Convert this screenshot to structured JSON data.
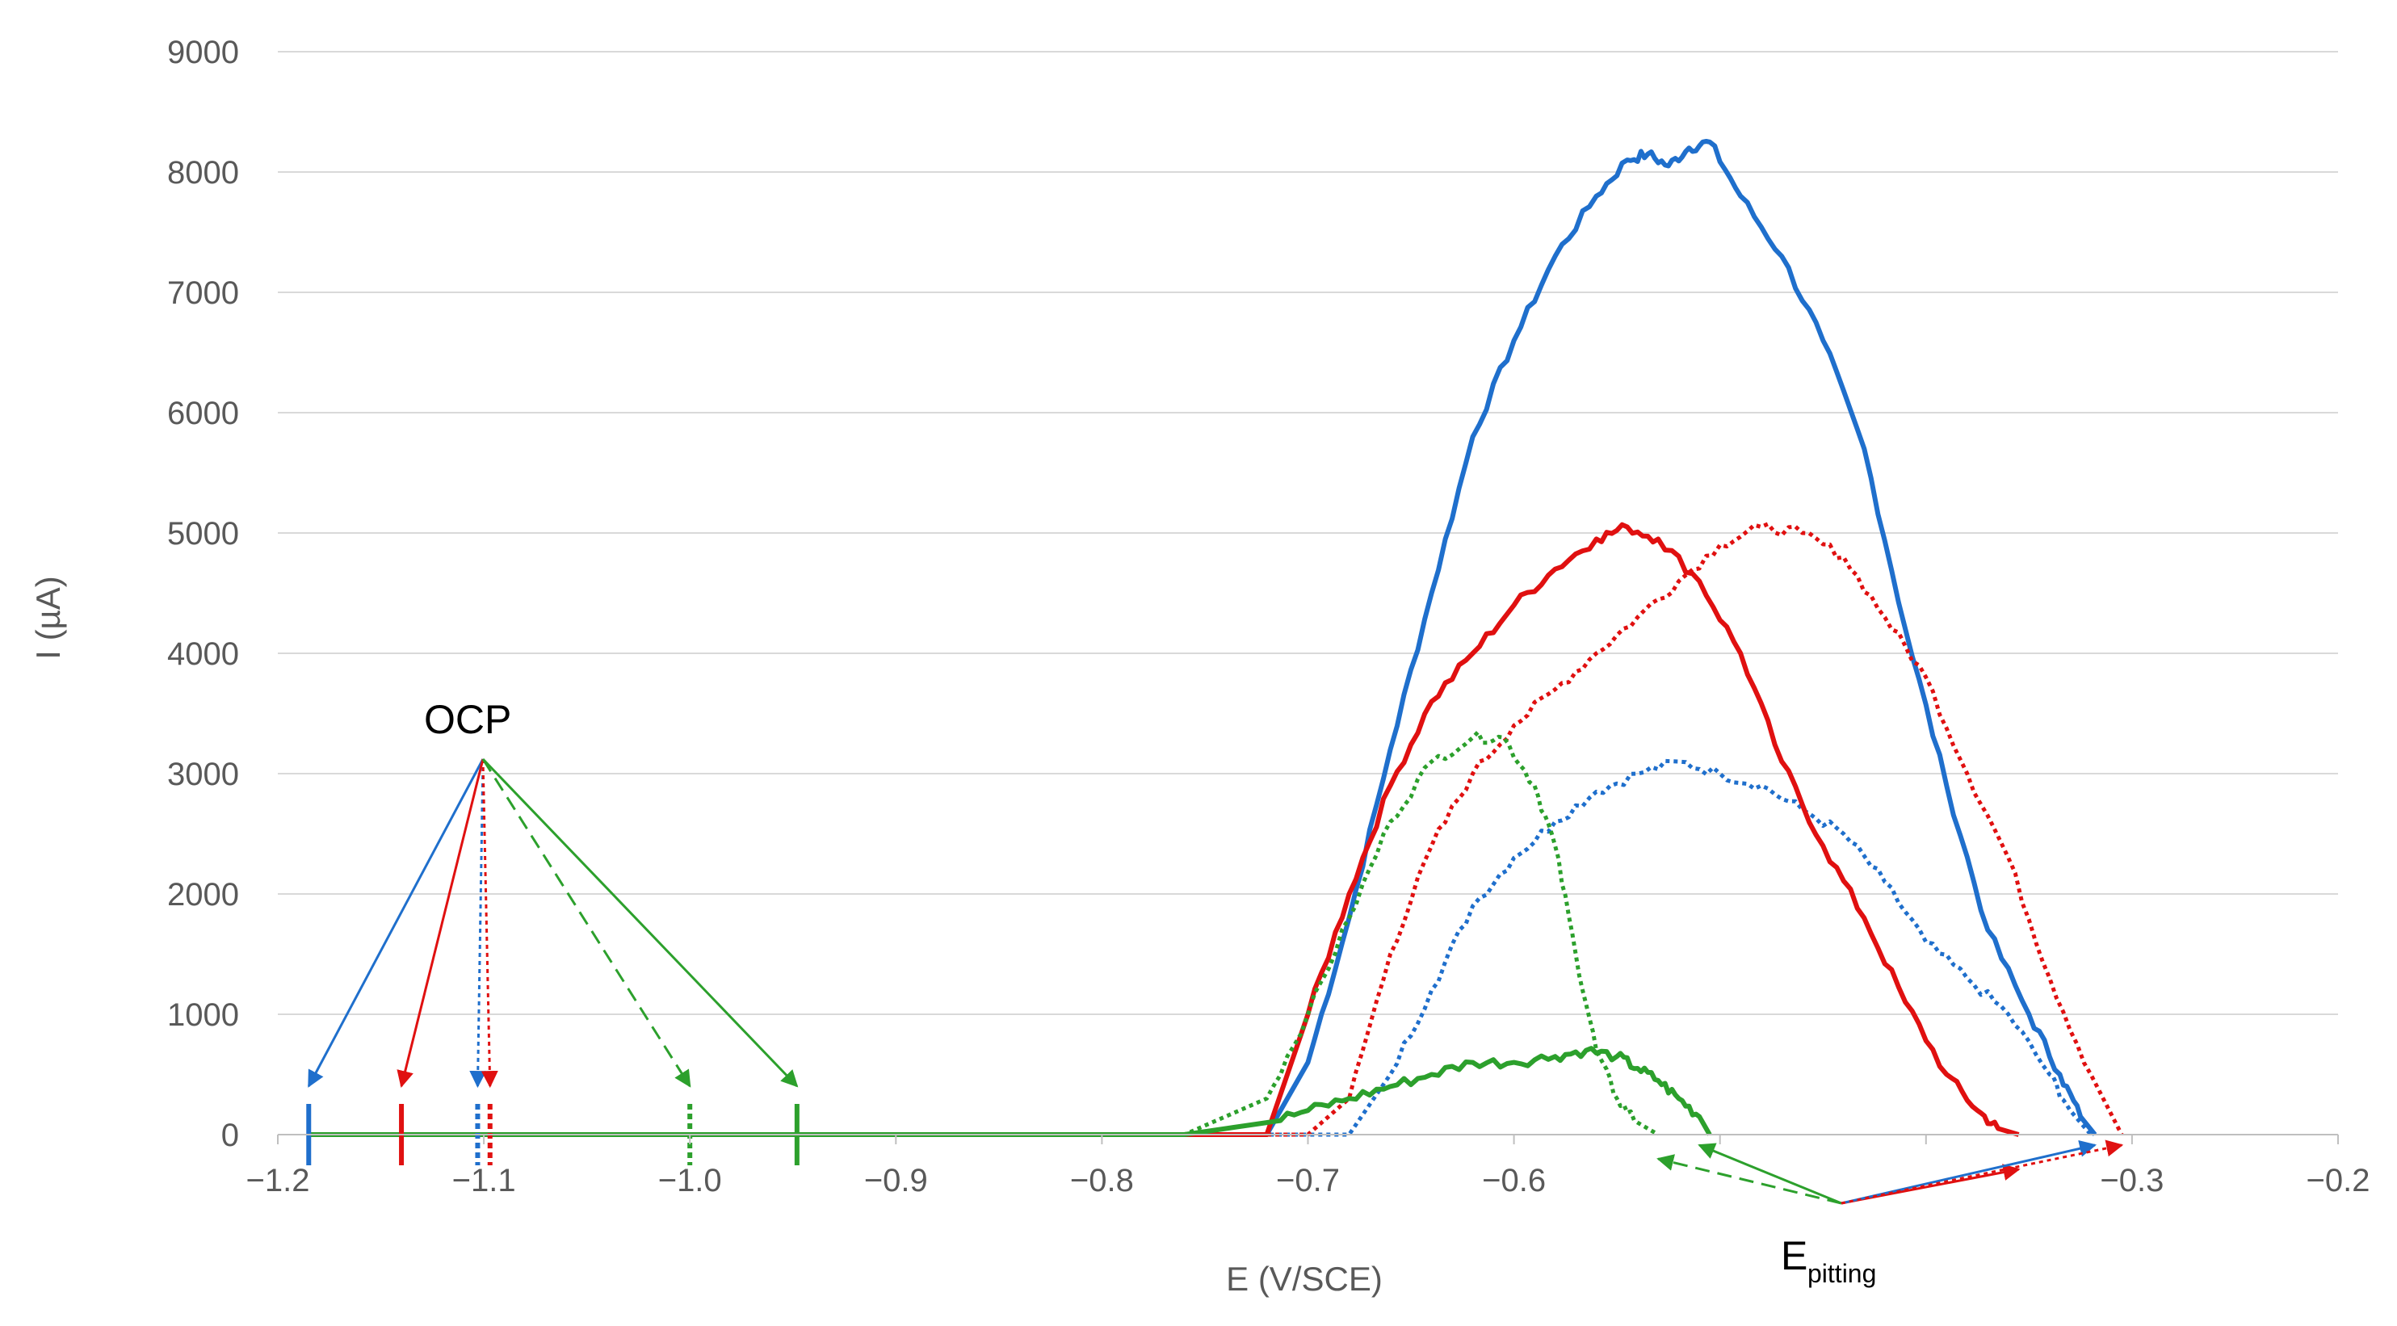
{
  "colors": {
    "blue": "#1f6fcc",
    "red": "#e01010",
    "green": "#2ca02c",
    "grid": "#d9d9d9",
    "axis": "#bfbfbf",
    "text": "#595959"
  },
  "chart_data": {
    "type": "line",
    "title": "",
    "xlabel": "E (V/SCE)",
    "ylabel": "I (µA)",
    "xlim": [
      -1.2,
      -0.2
    ],
    "ylim": [
      0,
      9000
    ],
    "x_ticks": [
      -1.2,
      -1.1,
      -1.0,
      -0.9,
      -0.8,
      -0.7,
      -0.6,
      -0.5,
      -0.4,
      -0.3,
      -0.2
    ],
    "x_tick_labels": [
      "−1.2",
      "−1.1",
      "−1.0",
      "−0.9",
      "−0.8",
      "−0.7",
      "−0.6",
      "",
      "",
      "−0.3",
      "−0.2"
    ],
    "y_ticks": [
      0,
      1000,
      2000,
      3000,
      4000,
      5000,
      6000,
      7000,
      8000,
      9000
    ],
    "y_tick_labels": [
      "0",
      "1000",
      "2000",
      "3000",
      "4000",
      "5000",
      "6000",
      "7000",
      "8000",
      "9000"
    ],
    "grid": "horizontal",
    "legend": "none",
    "series": [
      {
        "color": "blue",
        "style": "solid",
        "x": [
          -1.185,
          -0.8,
          -0.72,
          -0.7,
          -0.68,
          -0.66,
          -0.64,
          -0.62,
          -0.6,
          -0.58,
          -0.56,
          -0.545,
          -0.535,
          -0.525,
          -0.515,
          -0.505,
          -0.49,
          -0.47,
          -0.45,
          -0.43,
          -0.41,
          -0.39,
          -0.37,
          -0.35,
          -0.335,
          -0.325,
          -0.318
        ],
        "y": [
          0,
          0,
          0,
          600,
          1800,
          3200,
          4500,
          5800,
          6600,
          7300,
          7800,
          8100,
          8150,
          8050,
          8200,
          8250,
          7800,
          7300,
          6600,
          5700,
          4200,
          2900,
          1700,
          1000,
          500,
          150,
          0
        ]
      },
      {
        "color": "blue",
        "style": "dotted",
        "x": [
          -1.185,
          -0.72,
          -0.68,
          -0.66,
          -0.64,
          -0.62,
          -0.6,
          -0.58,
          -0.56,
          -0.54,
          -0.52,
          -0.5,
          -0.48,
          -0.46,
          -0.44,
          -0.42,
          -0.4,
          -0.38,
          -0.36,
          -0.34,
          -0.33,
          -0.32
        ],
        "y": [
          0,
          0,
          0,
          500,
          1200,
          1900,
          2300,
          2600,
          2850,
          3000,
          3100,
          3000,
          2900,
          2700,
          2500,
          2100,
          1600,
          1300,
          1000,
          500,
          200,
          0
        ]
      },
      {
        "color": "red",
        "style": "solid",
        "x": [
          -1.14,
          -0.8,
          -0.72,
          -0.7,
          -0.68,
          -0.66,
          -0.64,
          -0.62,
          -0.6,
          -0.58,
          -0.56,
          -0.545,
          -0.53,
          -0.51,
          -0.49,
          -0.47,
          -0.45,
          -0.43,
          -0.41,
          -0.39,
          -0.375,
          -0.365,
          -0.355
        ],
        "y": [
          0,
          0,
          0,
          1000,
          2000,
          2900,
          3600,
          4000,
          4400,
          4700,
          4950,
          5050,
          4950,
          4600,
          4000,
          3100,
          2400,
          1800,
          1100,
          500,
          200,
          50,
          0
        ]
      },
      {
        "color": "red",
        "style": "dotted",
        "x": [
          -1.1,
          -0.7,
          -0.68,
          -0.66,
          -0.64,
          -0.62,
          -0.6,
          -0.58,
          -0.56,
          -0.54,
          -0.52,
          -0.5,
          -0.48,
          -0.46,
          -0.44,
          -0.42,
          -0.4,
          -0.38,
          -0.36,
          -0.34,
          -0.32,
          -0.305
        ],
        "y": [
          0,
          0,
          300,
          1500,
          2400,
          3000,
          3400,
          3700,
          4000,
          4300,
          4600,
          4900,
          5050,
          5000,
          4800,
          4300,
          3800,
          3000,
          2300,
          1300,
          500,
          0
        ]
      },
      {
        "color": "green",
        "style": "solid",
        "x": [
          -1.185,
          -0.76,
          -0.72,
          -0.7,
          -0.68,
          -0.66,
          -0.64,
          -0.62,
          -0.6,
          -0.58,
          -0.565,
          -0.55,
          -0.54,
          -0.53,
          -0.52,
          -0.51,
          -0.505
        ],
        "y": [
          0,
          0,
          100,
          200,
          300,
          400,
          500,
          600,
          600,
          650,
          700,
          650,
          550,
          450,
          300,
          150,
          0
        ]
      },
      {
        "color": "green",
        "style": "dotted",
        "x": [
          -1.0,
          -0.76,
          -0.72,
          -0.7,
          -0.68,
          -0.66,
          -0.64,
          -0.62,
          -0.605,
          -0.59,
          -0.58,
          -0.57,
          -0.56,
          -0.55,
          -0.54,
          -0.53
        ],
        "y": [
          0,
          0,
          300,
          1000,
          1800,
          2600,
          3100,
          3300,
          3300,
          2900,
          2400,
          1500,
          700,
          300,
          100,
          0
        ]
      }
    ],
    "ocp_markers": [
      {
        "color": "blue",
        "style": "solid",
        "x": -1.185
      },
      {
        "color": "red",
        "style": "solid",
        "x": -1.14
      },
      {
        "color": "blue",
        "style": "dotted",
        "x": -1.103
      },
      {
        "color": "red",
        "style": "dotted",
        "x": -1.097
      },
      {
        "color": "green",
        "style": "dotted",
        "x": -1.0
      },
      {
        "color": "green",
        "style": "solid",
        "x": -0.948
      }
    ],
    "annotations": {
      "ocp_label": "OCP",
      "epitting_label": "E",
      "epitting_subscript": "pitting"
    }
  }
}
